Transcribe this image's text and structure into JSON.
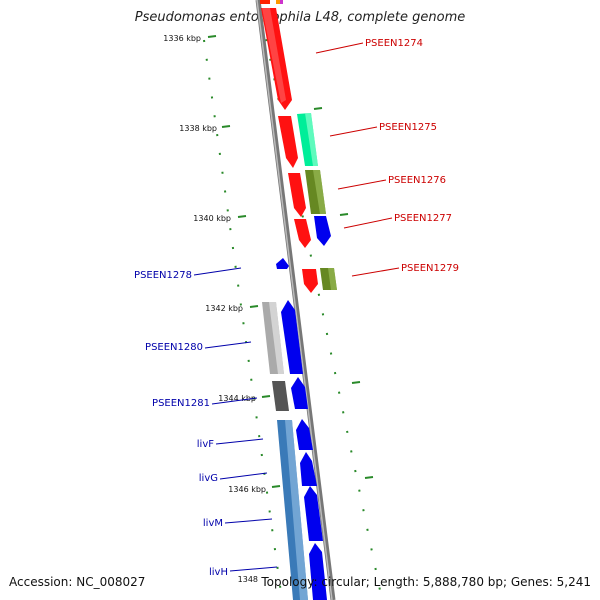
{
  "header": {
    "title": "Pseudomonas entomophila L48, complete genome"
  },
  "footer": {
    "accession": "Accession: NC_008027",
    "summary": "Topology: circular; Length: 5,888,780 bp; Genes: 5,241"
  },
  "ruler": [
    "1336 kbp",
    "1338 kbp",
    "1340 kbp",
    "1342 kbp",
    "1344 kbp",
    "1346 kbp",
    "1348"
  ],
  "labels_right": [
    "PSEEN1274",
    "PSEEN1275",
    "PSEEN1276",
    "PSEEN1277",
    "PSEEN1279"
  ],
  "labels_left": [
    "PSEEN1278",
    "PSEEN1280",
    "PSEEN1281",
    "livF",
    "livG",
    "livM",
    "livH"
  ],
  "colors": {
    "red_label": "#cc0000",
    "blue_label": "#0000aa",
    "backbone": "#888888",
    "ruler_dash": "#2a8a2a"
  }
}
